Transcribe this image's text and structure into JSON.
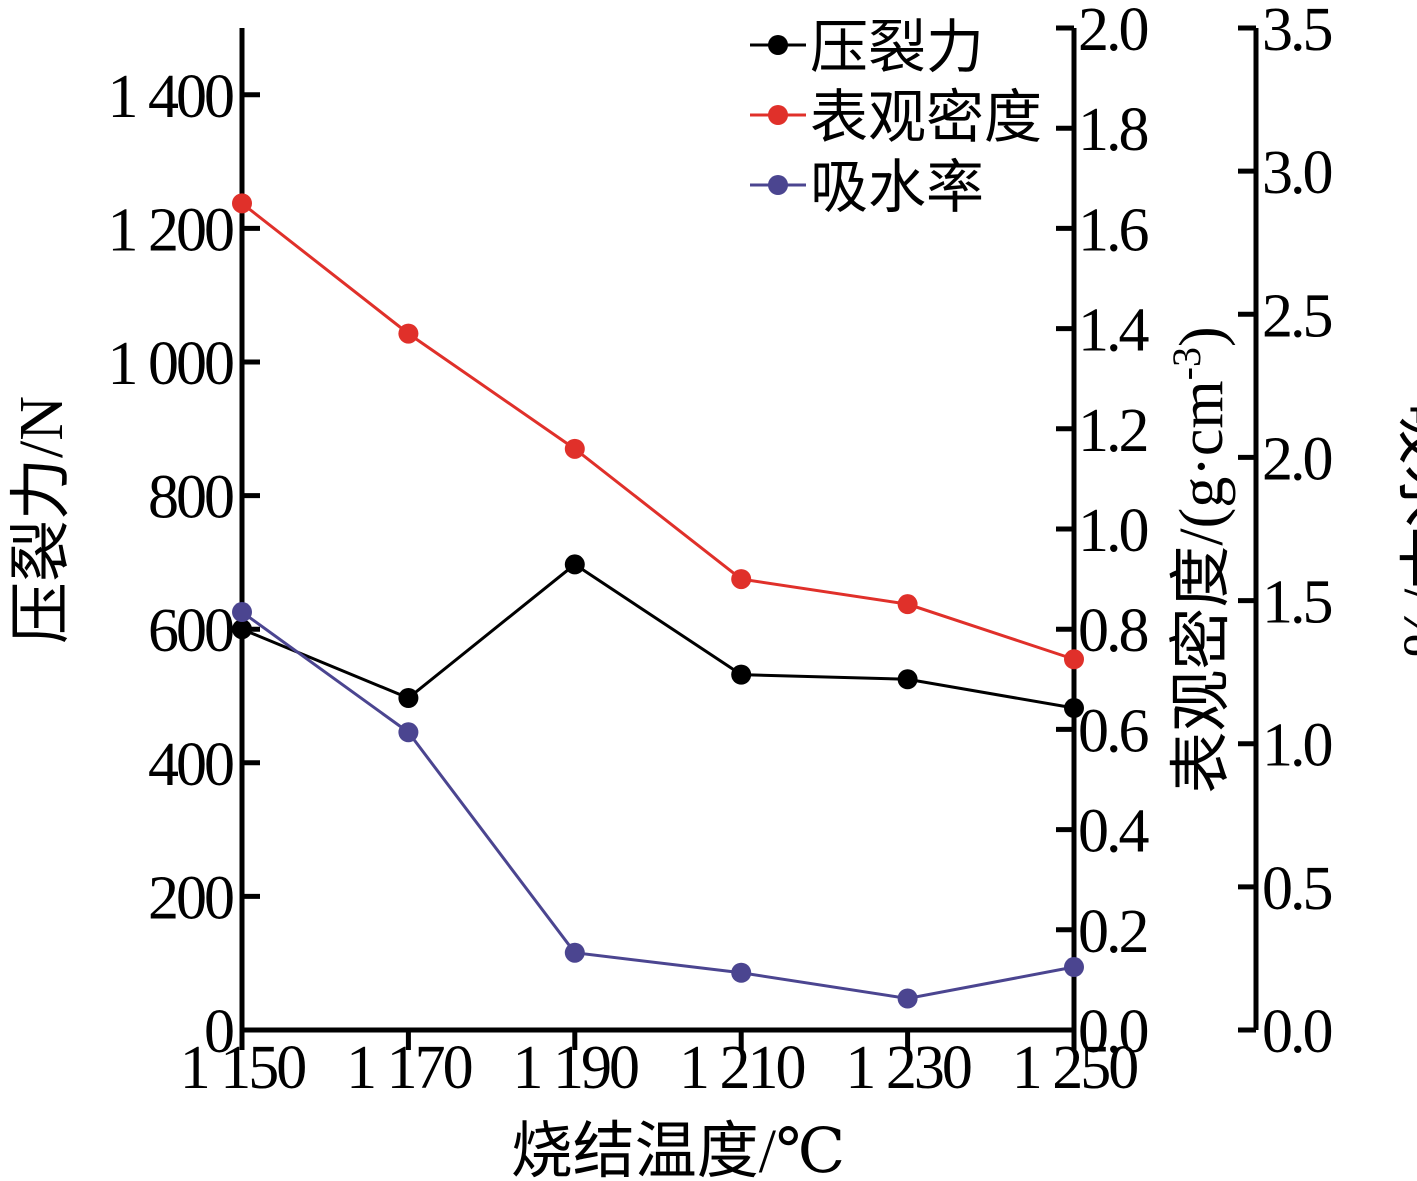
{
  "chart_data": {
    "type": "line",
    "x": [
      1150,
      1170,
      1190,
      1210,
      1230,
      1250
    ],
    "x_tick_labels": [
      "1 150",
      "1 170",
      "1 190",
      "1 210",
      "1 230",
      "1 250"
    ],
    "xlabel": "烧结温度/℃",
    "xlim": [
      1150,
      1250
    ],
    "axes": {
      "left": {
        "label": "压裂力/N",
        "ylim": [
          0,
          1500
        ],
        "ticks": [
          0,
          200,
          400,
          600,
          800,
          1000,
          1200,
          1400
        ],
        "tick_labels": [
          "0",
          "200",
          "400",
          "600",
          "800",
          "1 000",
          "1 200",
          "1 400"
        ]
      },
      "right1": {
        "label": "表观密度/(g·cm",
        "label_sup": "-3",
        "label_close": ")",
        "ylim": [
          0,
          2.0
        ],
        "ticks": [
          0,
          0.2,
          0.4,
          0.6,
          0.8,
          1.0,
          1.2,
          1.4,
          1.6,
          1.8,
          2.0
        ],
        "tick_labels": [
          "0.0",
          "0.2",
          "0.4",
          "0.6",
          "0.8",
          "1.0",
          "1.2",
          "1.4",
          "1.6",
          "1.8",
          "2.0"
        ]
      },
      "right2": {
        "label": "吸水率/%",
        "ylim": [
          0,
          3.5
        ],
        "ticks": [
          0,
          0.5,
          1.0,
          1.5,
          2.0,
          2.5,
          3.0,
          3.5
        ],
        "tick_labels": [
          "0.0",
          "0.5",
          "1.0",
          "1.5",
          "2.0",
          "2.5",
          "3.0",
          "3.5"
        ]
      }
    },
    "series": [
      {
        "name": "压裂力",
        "axis": "left",
        "color": "#000000",
        "values": [
          600,
          497,
          697,
          532,
          525,
          482
        ]
      },
      {
        "name": "表观密度",
        "axis": "right1",
        "color": "#e0302a",
        "values": [
          1.65,
          1.39,
          1.16,
          0.9,
          0.85,
          0.74
        ]
      },
      {
        "name": "吸水率",
        "axis": "right2",
        "color": "#4b4590",
        "values": [
          1.46,
          1.04,
          0.27,
          0.2,
          0.11,
          0.22
        ]
      }
    ],
    "legend_position": "top-right",
    "grid": false
  }
}
